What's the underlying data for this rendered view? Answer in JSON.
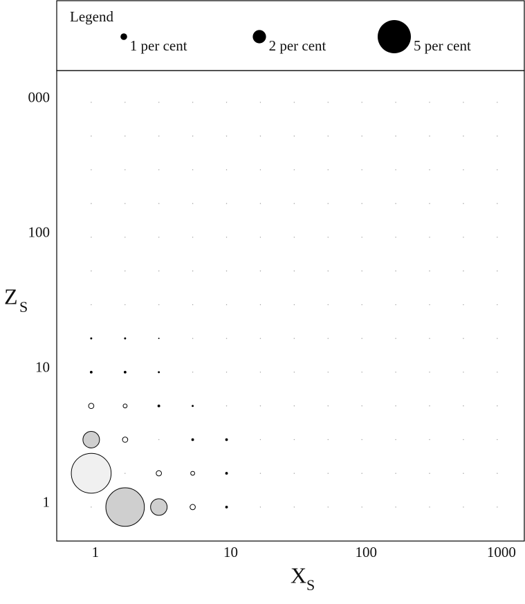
{
  "chart_data": {
    "type": "bubble",
    "xscale": "log",
    "yscale": "log",
    "xlabel": "X",
    "xlabel_sub": "S",
    "ylabel": "Z",
    "ylabel_sub": "S",
    "xlim": [
      0.556,
      1585
    ],
    "ylim": [
      0.56,
      1720
    ],
    "xticks": [
      1,
      10,
      100,
      1000
    ],
    "yticks": [
      1,
      10,
      100,
      {
        "value": 1000,
        "label": "000"
      }
    ],
    "grid": true,
    "legend": {
      "title": "Legend",
      "entries": [
        {
          "value": 1,
          "label": "1 per cent"
        },
        {
          "value": 2,
          "label": "2 per cent"
        },
        {
          "value": 5,
          "label": "5 per cent"
        }
      ],
      "color": "#000000"
    },
    "x": [
      1.78,
      3.16,
      5.62,
      10,
      1,
      3.16,
      5.62,
      10,
      1,
      1.78,
      5.62,
      10,
      1,
      1.78,
      3.16,
      5.62,
      1,
      1.78,
      3.16,
      1,
      1.78,
      3.16
    ],
    "values": [
      1,
      1,
      1,
      1,
      1.78,
      1.78,
      1.78,
      1.78,
      3.16,
      3.16,
      3.16,
      3.16,
      5.62,
      5.62,
      5.62,
      5.62,
      10,
      10,
      10,
      17.8,
      17.8,
      17.8
    ],
    "sizes": [
      5.8,
      2.5,
      0.8,
      0.4,
      6,
      0.8,
      0.6,
      0.4,
      2.5,
      0.8,
      0.4,
      0.4,
      0.8,
      0.6,
      0.4,
      0.3,
      0.4,
      0.4,
      0.3,
      0.3,
      0.3,
      0.2
    ],
    "colors": [
      "#cfcfcf",
      "#cfcfcf",
      "#ffffff",
      "#000000",
      "#f0f0f0",
      "#ffffff",
      "#ffffff",
      "#000000",
      "#cfcfcf",
      "#ffffff",
      "#000000",
      "#000000",
      "#ffffff",
      "#ffffff",
      "#000000",
      "#000000",
      "#000000",
      "#000000",
      "#000000",
      "#000000",
      "#000000",
      "#000000"
    ]
  }
}
